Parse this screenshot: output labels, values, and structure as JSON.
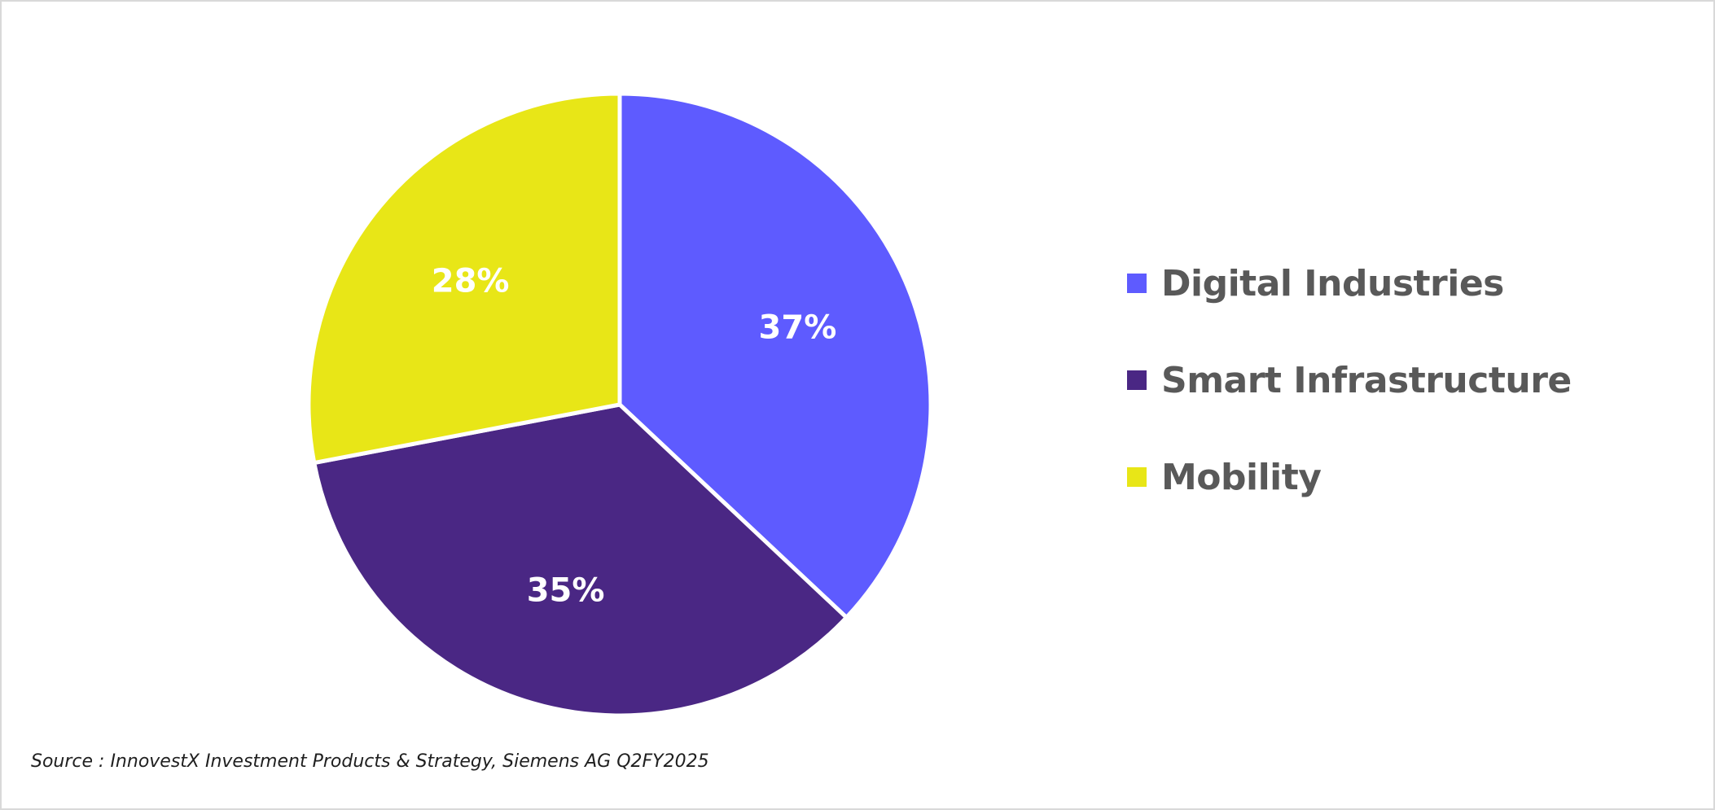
{
  "chart_data": {
    "type": "pie",
    "title": "",
    "slices": [
      {
        "name": "Digital Industries",
        "value": 37,
        "label": "37%",
        "color": "#5e5bff"
      },
      {
        "name": "Smart Infrastructure",
        "value": 35,
        "label": "35%",
        "color": "#4a2784"
      },
      {
        "name": "Mobility",
        "value": 28,
        "label": "28%",
        "color": "#e8e617"
      }
    ],
    "start": "12 o'clock",
    "direction": "clockwise",
    "legend_position": "right",
    "source": "Source : InnovestX Investment Products & Strategy, Siemens AG Q2FY2025"
  }
}
